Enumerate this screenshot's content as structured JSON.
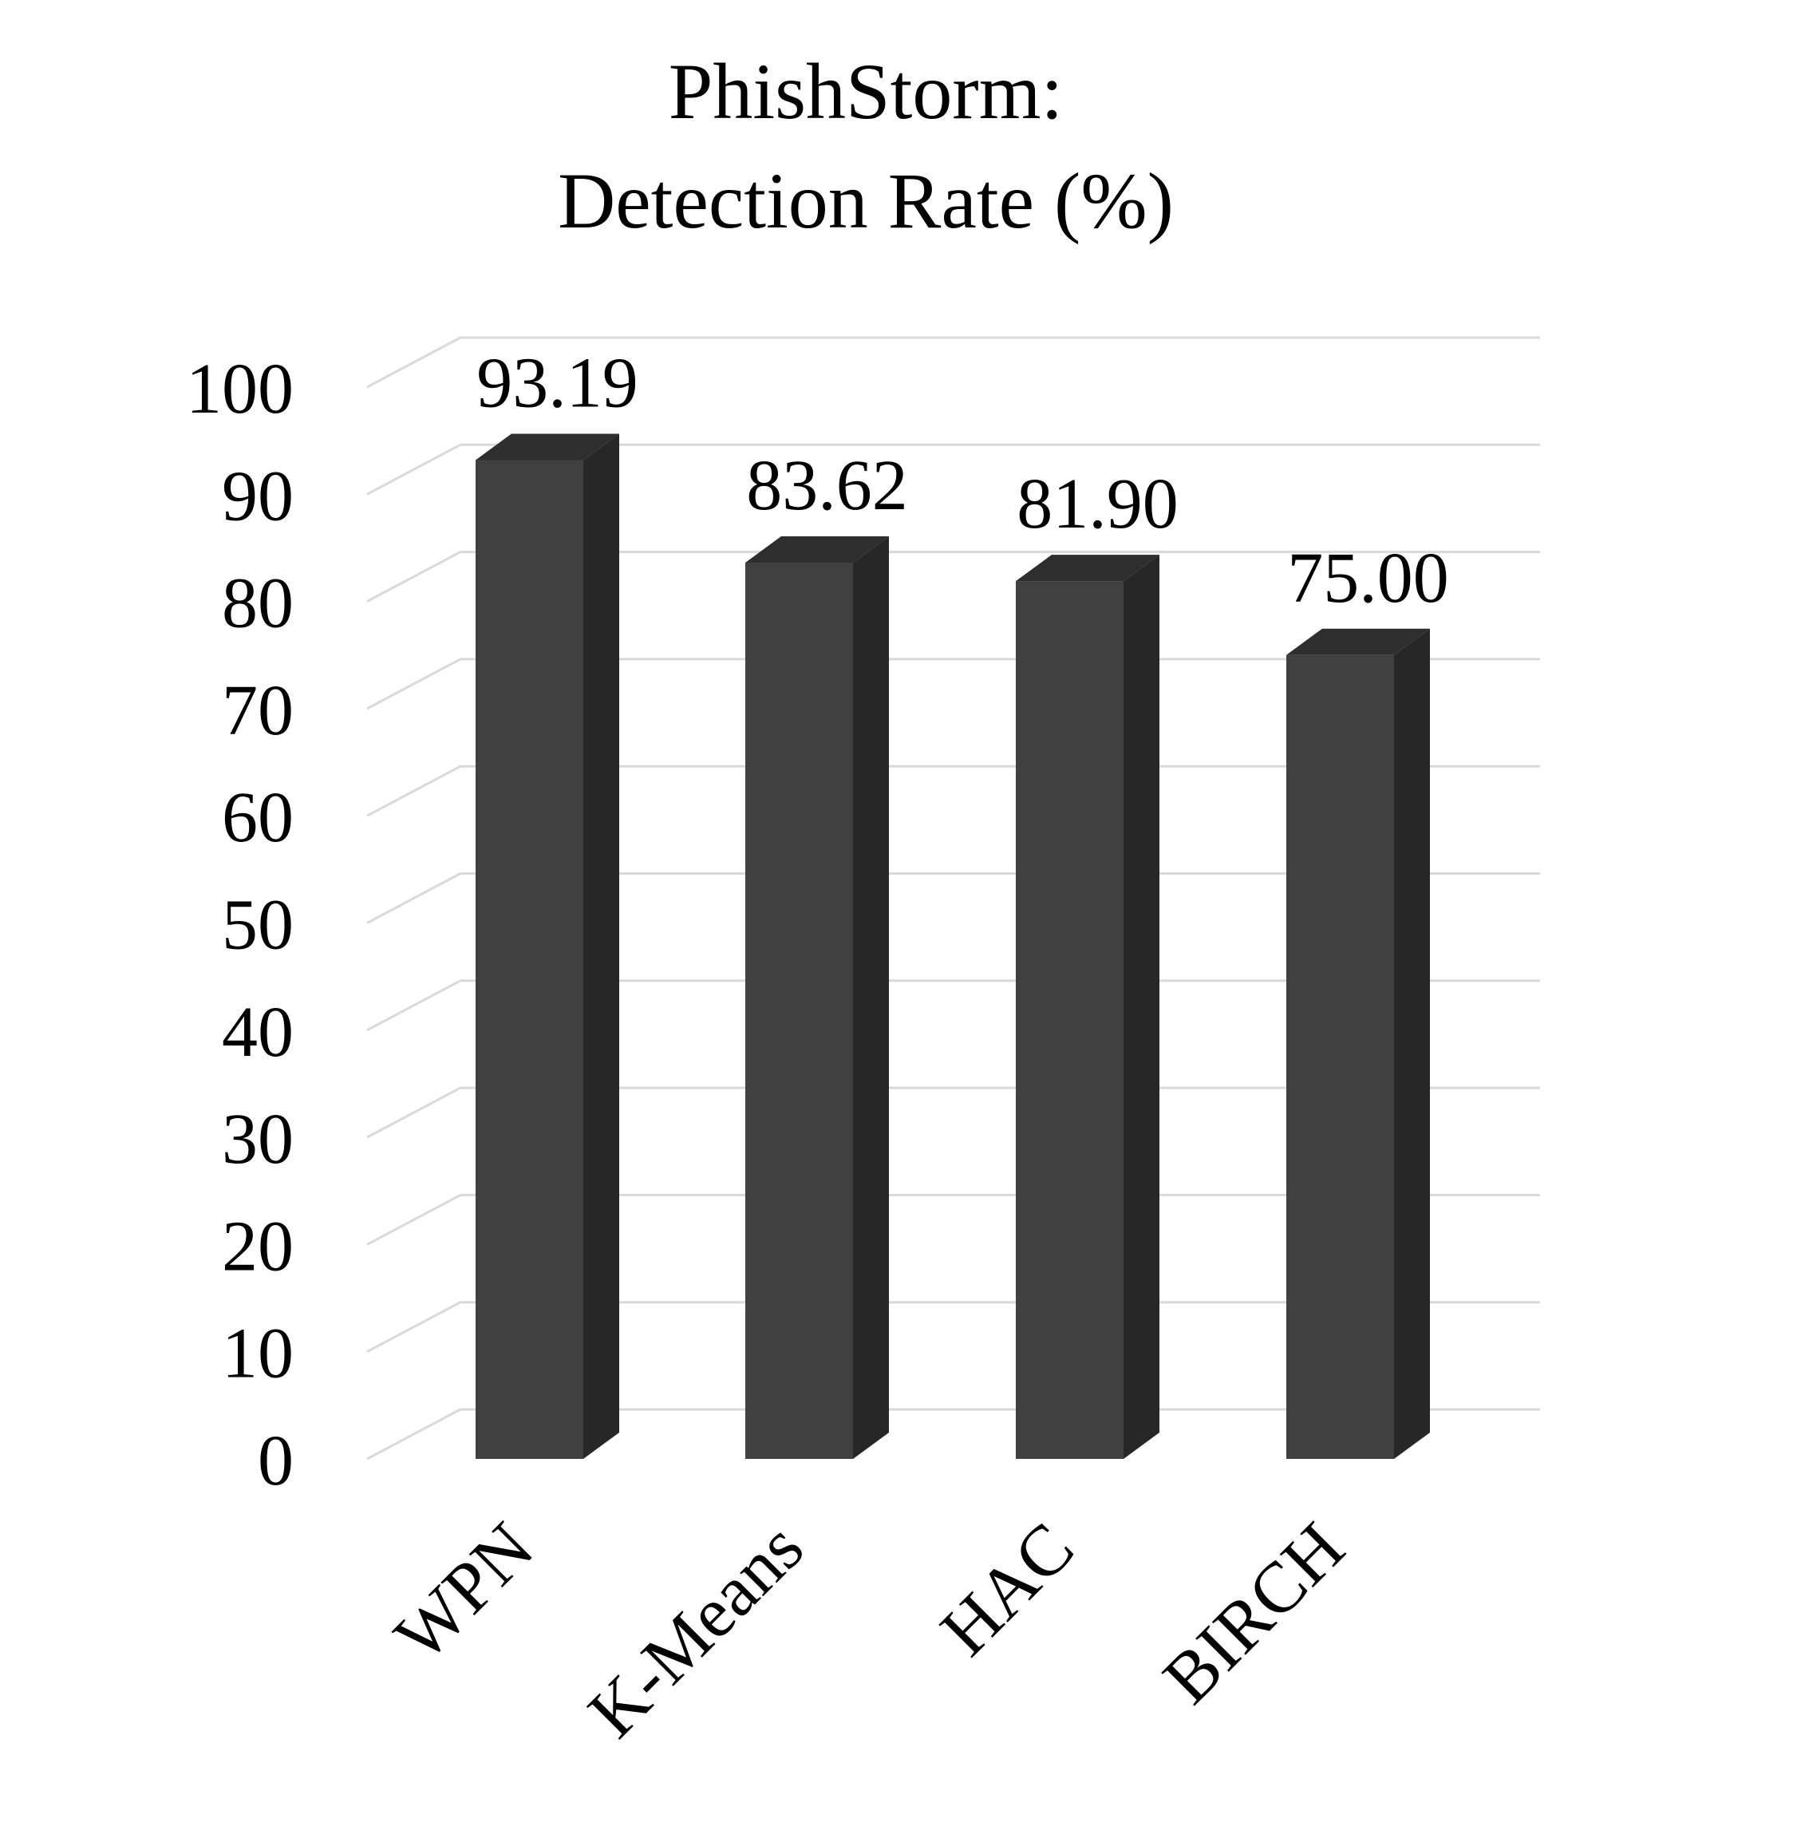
{
  "chart_data": {
    "type": "bar",
    "title_lines": [
      "PhishStorm:",
      "Detection Rate (%)"
    ],
    "categories": [
      "WPN",
      "K-Means",
      "HAC",
      "BIRCH"
    ],
    "values": [
      93.19,
      83.62,
      81.9,
      75.0
    ],
    "value_labels": [
      "93.19",
      "83.62",
      "81.90",
      "75.00"
    ],
    "yticks": [
      "0",
      "10",
      "20",
      "30",
      "40",
      "50",
      "60",
      "70",
      "80",
      "90",
      "100"
    ],
    "ylim": [
      0,
      100
    ],
    "grid": true,
    "style": "3d-column",
    "colors": {
      "bar_front": "#404040",
      "bar_side": "#272727",
      "bar_top": "#2e2e2e",
      "grid": "#d9d9d9"
    }
  }
}
